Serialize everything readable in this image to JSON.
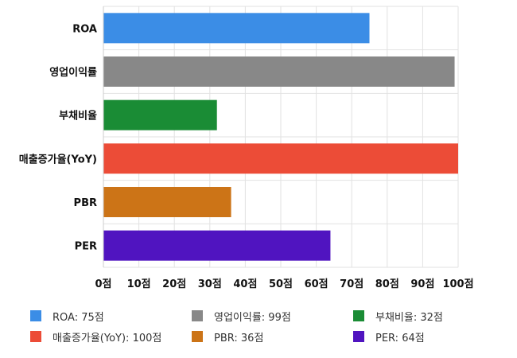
{
  "chart_data": {
    "type": "bar",
    "orientation": "horizontal",
    "categories": [
      "ROA",
      "영업이익률",
      "부채비율",
      "매출증가율(YoY)",
      "PBR",
      "PER"
    ],
    "values": [
      75,
      99,
      32,
      100,
      36,
      64
    ],
    "colors": [
      "#3b8de6",
      "#888888",
      "#1a8c35",
      "#ec4c37",
      "#cc7417",
      "#5014c0"
    ],
    "xlim": [
      0,
      100
    ],
    "x_ticks": [
      0,
      10,
      20,
      30,
      40,
      50,
      60,
      70,
      80,
      90,
      100
    ],
    "x_tick_labels": [
      "0점",
      "10점",
      "20점",
      "30점",
      "40점",
      "50점",
      "60점",
      "70점",
      "80점",
      "90점",
      "100점"
    ],
    "grid": true,
    "legend_position": "bottom",
    "legend_entries": [
      {
        "label": "ROA: 75점",
        "color": "#3b8de6"
      },
      {
        "label": "영업이익률: 99점",
        "color": "#888888"
      },
      {
        "label": "부채비율: 32점",
        "color": "#1a8c35"
      },
      {
        "label": "매출증가율(YoY): 100점",
        "color": "#ec4c37"
      },
      {
        "label": "PBR: 36점",
        "color": "#cc7417"
      },
      {
        "label": "PER: 64점",
        "color": "#5014c0"
      }
    ]
  }
}
